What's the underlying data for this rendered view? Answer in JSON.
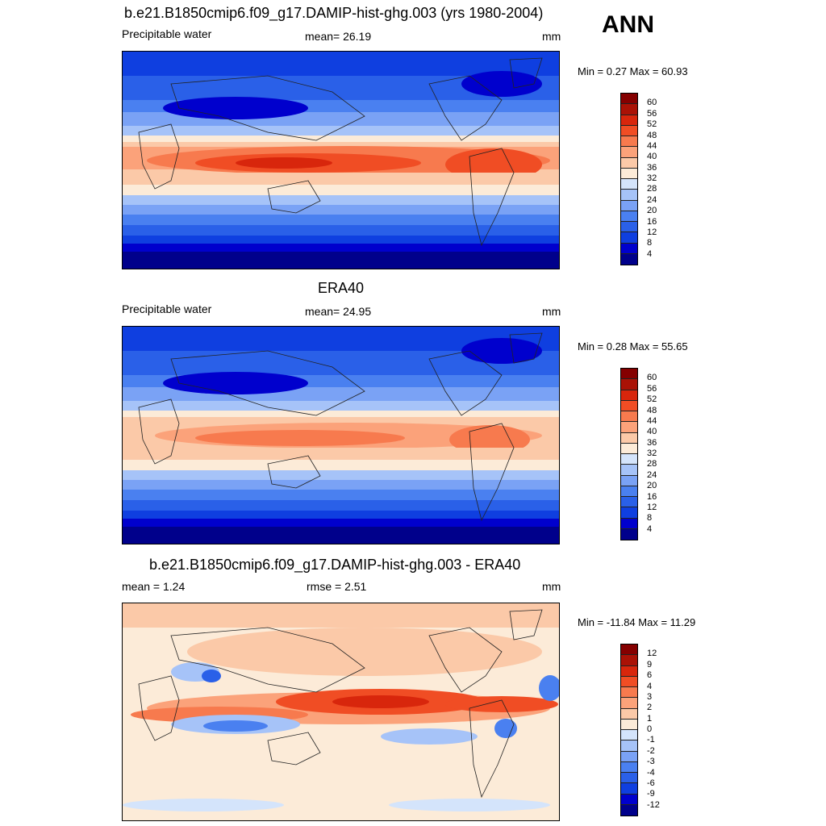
{
  "season": "ANN",
  "panels": [
    {
      "title": "b.e21.B1850cmip6.f09_g17.DAMIP-hist-ghg.003 (yrs 1980-2004)",
      "left_label": "Precipitable water",
      "center_label": "mean=  26.19",
      "units": "mm",
      "minmax": "Min =   0.27 Max =  60.93",
      "colorbar": {
        "levels": [
          "4",
          "8",
          "12",
          "16",
          "20",
          "24",
          "28",
          "32",
          "36",
          "40",
          "44",
          "48",
          "52",
          "56",
          "60"
        ],
        "colors": [
          "#00008b",
          "#0000cd",
          "#0f3fe0",
          "#2a60e8",
          "#4a80f0",
          "#7aa2f5",
          "#a6c3f8",
          "#d4e4fb",
          "#fcebd8",
          "#fbc9a8",
          "#fba27a",
          "#f77a4e",
          "#f04d24",
          "#d8260c",
          "#aa1206",
          "#850000"
        ]
      }
    },
    {
      "title": "ERA40",
      "left_label": "Precipitable water",
      "center_label": "mean=  24.95",
      "units": "mm",
      "minmax": "Min =   0.28 Max =  55.65",
      "colorbar": {
        "levels": [
          "4",
          "8",
          "12",
          "16",
          "20",
          "24",
          "28",
          "32",
          "36",
          "40",
          "44",
          "48",
          "52",
          "56",
          "60"
        ],
        "colors": [
          "#00008b",
          "#0000cd",
          "#0f3fe0",
          "#2a60e8",
          "#4a80f0",
          "#7aa2f5",
          "#a6c3f8",
          "#d4e4fb",
          "#fcebd8",
          "#fbc9a8",
          "#fba27a",
          "#f77a4e",
          "#f04d24",
          "#d8260c",
          "#aa1206",
          "#850000"
        ]
      }
    },
    {
      "title": "b.e21.B1850cmip6.f09_g17.DAMIP-hist-ghg.003 - ERA40",
      "left_label": "mean =   1.24",
      "center_label": "rmse =   2.51",
      "units": "mm",
      "minmax": "Min = -11.84 Max =  11.29",
      "colorbar": {
        "levels": [
          "-12",
          "-9",
          "-6",
          "-4",
          "-3",
          "-2",
          "-1",
          "0",
          "1",
          "2",
          "3",
          "4",
          "6",
          "9",
          "12"
        ],
        "colors": [
          "#00008b",
          "#0000cd",
          "#0f3fe0",
          "#2a60e8",
          "#4a80f0",
          "#7aa2f5",
          "#a6c3f8",
          "#d4e4fb",
          "#fcebd8",
          "#fbc9a8",
          "#fba27a",
          "#f77a4e",
          "#f04d24",
          "#d8260c",
          "#aa1206",
          "#850000"
        ]
      }
    }
  ]
}
